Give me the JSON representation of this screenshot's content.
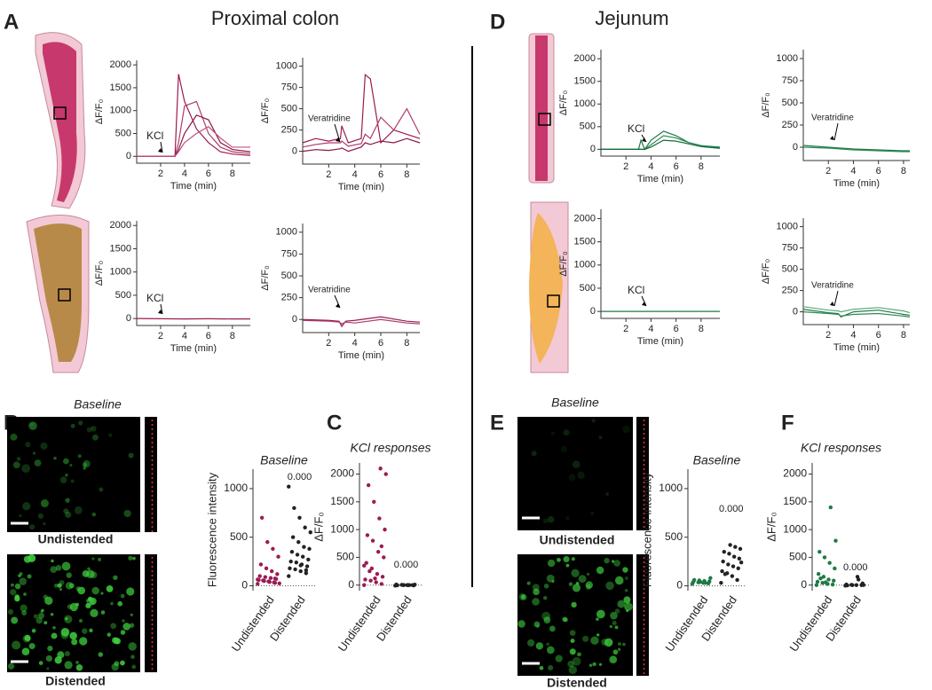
{
  "titles": [
    "Proximal colon",
    "Jejunum"
  ],
  "panels": [
    "A",
    "B",
    "C",
    "D",
    "E",
    "F"
  ],
  "image_labels": [
    {
      "heading": "Baseline",
      "top": "Undistended",
      "bottom": "Distended"
    },
    {
      "heading": "Baseline",
      "top": "Undistended",
      "bottom": "Distended"
    }
  ],
  "chart_data": [
    {
      "type": "line",
      "ylabel": "ΔF/F₀",
      "xlabel": "Time (min)",
      "annotation": "KCl",
      "xlim": [
        0,
        9.5
      ],
      "xticks": [
        2,
        4,
        6,
        8
      ],
      "ylim": [
        -150,
        2100
      ],
      "yticks": [
        0,
        500,
        1000,
        1500,
        2000
      ],
      "x": [
        0,
        1,
        2,
        3,
        3.2,
        3.5,
        4,
        5,
        6,
        7,
        8,
        9.5
      ],
      "series": [
        {
          "color": "#9b1b52",
          "values": [
            0,
            0,
            0,
            0,
            0,
            1800,
            1200,
            600,
            300,
            100,
            50,
            20
          ]
        },
        {
          "color": "#b03a6c",
          "values": [
            0,
            0,
            0,
            0,
            0,
            300,
            1100,
            1200,
            500,
            200,
            100,
            60
          ]
        },
        {
          "color": "#8a1547",
          "values": [
            0,
            0,
            0,
            0,
            0,
            150,
            500,
            900,
            800,
            300,
            150,
            100
          ]
        },
        {
          "color": "#c0507f",
          "values": [
            0,
            0,
            0,
            0,
            0,
            100,
            300,
            500,
            650,
            400,
            200,
            200
          ]
        }
      ]
    },
    {
      "type": "line",
      "ylabel": "ΔF/F₀",
      "xlabel": "Time (min)",
      "annotation": "Veratridine",
      "xlim": [
        0,
        9
      ],
      "xticks": [
        2,
        4,
        6,
        8
      ],
      "ylim": [
        -150,
        1100
      ],
      "yticks": [
        0,
        250,
        500,
        750,
        1000
      ],
      "x": [
        0,
        1,
        2,
        2.9,
        3,
        3.5,
        4.5,
        4.8,
        5.2,
        6,
        7,
        8,
        9
      ],
      "series": [
        {
          "color": "#9b1b52",
          "values": [
            100,
            150,
            120,
            150,
            300,
            100,
            150,
            900,
            850,
            100,
            250,
            200,
            150
          ]
        },
        {
          "color": "#b03a6c",
          "values": [
            50,
            80,
            100,
            100,
            120,
            60,
            90,
            200,
            150,
            400,
            250,
            500,
            200
          ]
        },
        {
          "color": "#8a1547",
          "values": [
            0,
            20,
            10,
            30,
            40,
            0,
            50,
            100,
            80,
            120,
            100,
            150,
            100
          ]
        }
      ]
    },
    {
      "type": "line",
      "ylabel": "ΔF/F₀",
      "xlabel": "Time (min)",
      "annotation": "KCl",
      "xlim": [
        0,
        9.5
      ],
      "xticks": [
        2,
        4,
        6,
        8
      ],
      "ylim": [
        -150,
        2100
      ],
      "yticks": [
        0,
        500,
        1000,
        1500,
        2000
      ],
      "x": [
        0,
        2,
        4,
        6,
        8,
        9.5
      ],
      "series": [
        {
          "color": "#9b1b52",
          "values": [
            0,
            -5,
            -10,
            -5,
            -10,
            -10
          ]
        }
      ]
    },
    {
      "type": "line",
      "ylabel": "ΔF/F₀",
      "xlabel": "Time (min)",
      "annotation": "Veratridine",
      "xlim": [
        0,
        9
      ],
      "xticks": [
        2,
        4,
        6,
        8
      ],
      "ylim": [
        -150,
        1100
      ],
      "yticks": [
        0,
        250,
        500,
        750,
        1000
      ],
      "x": [
        0,
        2,
        2.8,
        3,
        3.3,
        4,
        6,
        8,
        9
      ],
      "series": [
        {
          "color": "#9b1b52",
          "values": [
            0,
            -10,
            -20,
            -80,
            -20,
            -10,
            30,
            -20,
            -30
          ]
        },
        {
          "color": "#b03a6c",
          "values": [
            -10,
            -20,
            -30,
            -50,
            -30,
            -40,
            0,
            -40,
            -50
          ]
        }
      ]
    },
    {
      "type": "line",
      "ylabel": "ΔF/F₀",
      "xlabel": "Time (min)",
      "annotation": "KCl",
      "xlim": [
        0,
        9.5
      ],
      "xticks": [
        2,
        4,
        6,
        8
      ],
      "ylim": [
        -150,
        2200
      ],
      "yticks": [
        0,
        500,
        1000,
        1500,
        2000
      ],
      "x": [
        0,
        1,
        2,
        3,
        3.2,
        3.5,
        4,
        5,
        6,
        7,
        8,
        9.5
      ],
      "series": [
        {
          "color": "#1e7a45",
          "values": [
            0,
            0,
            0,
            0,
            200,
            0,
            200,
            400,
            300,
            150,
            80,
            50
          ]
        },
        {
          "color": "#2e8b57",
          "values": [
            0,
            0,
            0,
            0,
            0,
            0,
            100,
            300,
            250,
            150,
            80,
            30
          ]
        },
        {
          "color": "#176a3a",
          "values": [
            0,
            0,
            0,
            0,
            0,
            0,
            50,
            200,
            180,
            120,
            60,
            20
          ]
        }
      ]
    },
    {
      "type": "line",
      "ylabel": "ΔF/F₀",
      "xlabel": "Time (min)",
      "annotation": "Veratridine",
      "xlim": [
        0,
        8.5
      ],
      "xticks": [
        2,
        4,
        6,
        8
      ],
      "ylim": [
        -150,
        1100
      ],
      "yticks": [
        0,
        250,
        500,
        750,
        1000
      ],
      "x": [
        0,
        2,
        4,
        6,
        8,
        8.5
      ],
      "series": [
        {
          "color": "#1e7a45",
          "values": [
            20,
            0,
            -20,
            -30,
            -40,
            -40
          ]
        },
        {
          "color": "#2e8b57",
          "values": [
            0,
            -10,
            -30,
            -40,
            -50,
            -50
          ]
        }
      ]
    },
    {
      "type": "line",
      "ylabel": "ΔF/F₀",
      "xlabel": "Time (min)",
      "annotation": "KCl",
      "xlim": [
        0,
        9.5
      ],
      "xticks": [
        2,
        4,
        6,
        8
      ],
      "ylim": [
        -150,
        2200
      ],
      "yticks": [
        0,
        500,
        1000,
        1500,
        2000
      ],
      "x": [
        0,
        2,
        4,
        6,
        8,
        9.5
      ],
      "series": [
        {
          "color": "#1e7a45",
          "values": [
            0,
            0,
            0,
            0,
            0,
            0
          ]
        }
      ]
    },
    {
      "type": "line",
      "ylabel": "ΔF/F₀",
      "xlabel": "Time (min)",
      "annotation": "Veratridine",
      "xlim": [
        0,
        8.5
      ],
      "xticks": [
        2,
        4,
        6,
        8
      ],
      "ylim": [
        -150,
        1100
      ],
      "yticks": [
        0,
        250,
        500,
        750,
        1000
      ],
      "x": [
        0,
        2,
        2.8,
        3,
        4,
        6,
        8,
        8.5
      ],
      "series": [
        {
          "color": "#1e7a45",
          "values": [
            30,
            -10,
            -20,
            -60,
            0,
            20,
            -30,
            -40
          ]
        },
        {
          "color": "#2e8b57",
          "values": [
            0,
            -20,
            -30,
            -50,
            -30,
            -20,
            -50,
            -60
          ]
        },
        {
          "color": "#5aa878",
          "values": [
            60,
            20,
            10,
            0,
            30,
            50,
            10,
            -10
          ]
        }
      ]
    },
    {
      "type": "strip",
      "title": "Baseline",
      "ylabel": "Fluorescence intensity",
      "categories": [
        "Undistended",
        "Distended"
      ],
      "ylim": [
        -50,
        1200
      ],
      "yticks": [
        0,
        500,
        1000
      ],
      "annotation": "0.000",
      "groups": [
        {
          "color": "#9b1b52",
          "values": [
            20,
            30,
            40,
            50,
            60,
            70,
            80,
            90,
            100,
            120,
            150,
            180,
            220,
            300,
            380,
            450,
            700,
            25,
            35,
            45,
            55,
            65,
            75
          ]
        },
        {
          "color": "#222222",
          "values": [
            100,
            130,
            150,
            170,
            180,
            200,
            220,
            240,
            250,
            270,
            300,
            320,
            350,
            380,
            400,
            450,
            500,
            550,
            600,
            700,
            800,
            1020,
            160,
            210
          ]
        }
      ]
    },
    {
      "type": "strip",
      "title": "KCl responses",
      "ylabel": "ΔF/F₀",
      "categories": [
        "Undistended",
        "Distended"
      ],
      "ylim": [
        -100,
        2200
      ],
      "yticks": [
        0,
        500,
        1000,
        1500,
        2000
      ],
      "annotation": "0.000",
      "groups": [
        {
          "color": "#9b1b52",
          "values": [
            0,
            20,
            50,
            80,
            100,
            150,
            200,
            300,
            400,
            500,
            600,
            800,
            900,
            1000,
            1200,
            1500,
            1800,
            2000,
            2100,
            120,
            250,
            350,
            700
          ]
        },
        {
          "color": "#222222",
          "values": [
            -10,
            0,
            0,
            5,
            10,
            -5,
            0,
            2,
            -3,
            8,
            0,
            1
          ]
        }
      ]
    },
    {
      "type": "strip",
      "title": "Baseline",
      "ylabel": "Fluorescence intensity",
      "categories": [
        "Undistended",
        "Distended"
      ],
      "ylim": [
        -50,
        1200
      ],
      "yticks": [
        0,
        500,
        1000
      ],
      "annotation": "0.000",
      "groups": [
        {
          "color": "#1e7a45",
          "values": [
            20,
            25,
            30,
            35,
            40,
            45,
            50,
            55,
            60,
            80,
            30,
            40
          ]
        },
        {
          "color": "#222222",
          "values": [
            30,
            60,
            100,
            130,
            150,
            180,
            200,
            220,
            250,
            280,
            300,
            330,
            350,
            380,
            400,
            420,
            120,
            240
          ]
        }
      ]
    },
    {
      "type": "strip",
      "title": "KCl responses",
      "ylabel": "ΔF/F₀",
      "categories": [
        "Undistended",
        "Distended"
      ],
      "ylim": [
        -100,
        2200
      ],
      "yticks": [
        0,
        500,
        1000,
        1500,
        2000
      ],
      "annotation": "0.000",
      "groups": [
        {
          "color": "#1e7a45",
          "values": [
            0,
            10,
            20,
            40,
            60,
            80,
            100,
            150,
            200,
            300,
            400,
            500,
            600,
            800,
            1400,
            50,
            120
          ]
        },
        {
          "color": "#222222",
          "values": [
            -10,
            0,
            0,
            5,
            10,
            30,
            150,
            0,
            -5,
            2,
            100
          ]
        }
      ]
    }
  ]
}
